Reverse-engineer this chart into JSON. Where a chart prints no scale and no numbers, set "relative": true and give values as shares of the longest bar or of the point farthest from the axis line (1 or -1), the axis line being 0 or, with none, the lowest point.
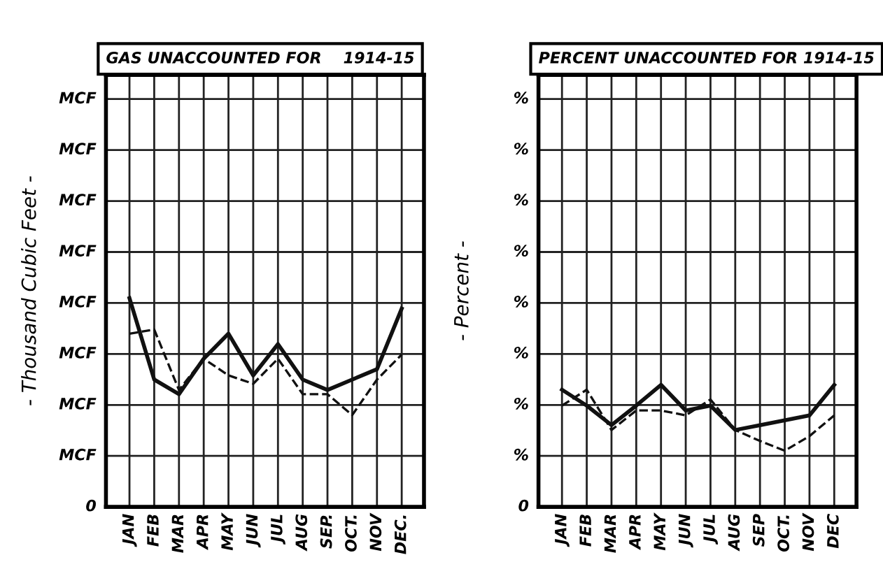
{
  "chart_data": [
    {
      "type": "line",
      "title": "GAS UNACCOUNTED FOR    1914-15",
      "ylabel": "- Thousand Cubic Feet -",
      "relative": true,
      "categories": [
        "JAN",
        "FEB",
        "MAR",
        "APR",
        "MAY",
        "JUN",
        "JUL",
        "AUG",
        "SEP.",
        "OCT.",
        "NOV",
        "DEC."
      ],
      "series": [
        {
          "color": "#111111",
          "line_style": "solid",
          "values": [
            1.0,
            0.61,
            0.54,
            0.71,
            0.83,
            0.63,
            0.78,
            0.61,
            0.56,
            0.61,
            0.66,
            0.95
          ]
        },
        {
          "color": "#111111",
          "line_style": "dashed",
          "values": [
            0.83,
            0.85,
            0.56,
            0.71,
            0.63,
            0.59,
            0.71,
            0.54,
            0.54,
            0.44,
            0.61,
            0.73
          ]
        }
      ],
      "annotations": [
        "0",
        "MCF",
        "MCF",
        "MCF",
        "MCF",
        "MCF",
        "MCF",
        "MCF",
        "MCF"
      ],
      "grid": true
    },
    {
      "type": "line",
      "title": "PERCENT UNACCOUNTED FOR 1914-15",
      "ylabel": "- Percent -",
      "relative": true,
      "categories": [
        "JAN",
        "FEB",
        "MAR",
        "APR",
        "MAY",
        "JUN",
        "JUL",
        "AUG",
        "SEP",
        "OCT.",
        "NOV",
        "DEC"
      ],
      "series": [
        {
          "color": "#111111",
          "line_style": "solid",
          "values": [
            0.96,
            0.83,
            0.67,
            0.83,
            1.0,
            0.79,
            0.83,
            0.63,
            0.67,
            0.71,
            0.75,
            1.0
          ]
        },
        {
          "color": "#111111",
          "line_style": "dashed",
          "values": [
            0.83,
            0.96,
            0.63,
            0.79,
            0.79,
            0.75,
            0.88,
            0.63,
            0.54,
            0.46,
            0.58,
            0.75
          ]
        }
      ],
      "annotations": [
        "0",
        "%",
        "%",
        "%",
        "%",
        "%",
        "%",
        "%",
        "%"
      ],
      "grid": true
    }
  ]
}
